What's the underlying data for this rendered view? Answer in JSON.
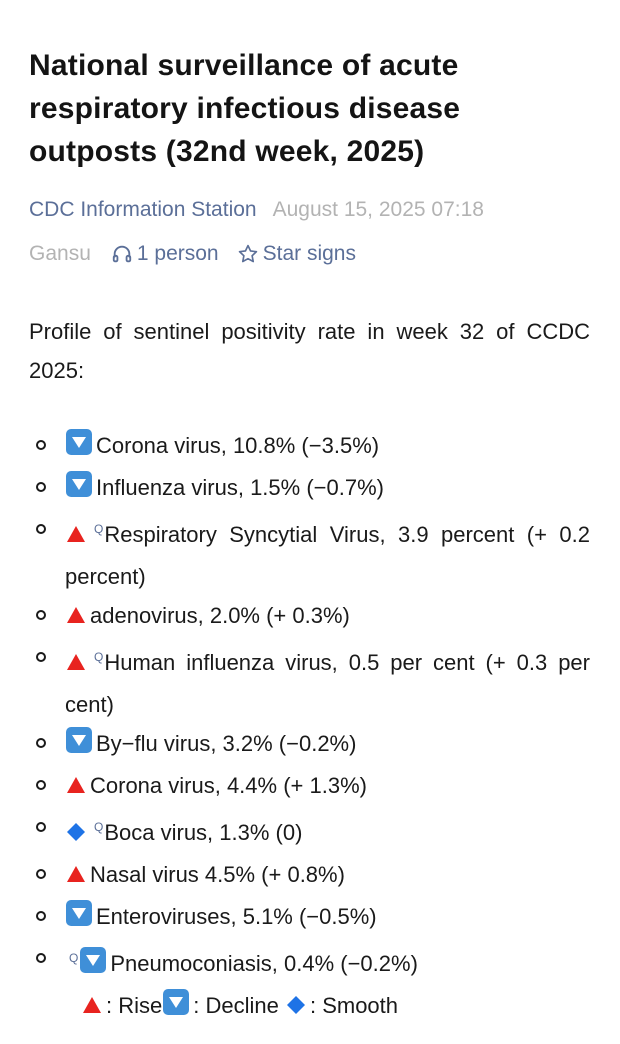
{
  "article": {
    "title": "National surveillance of acute respiratory infectious disease outposts (32nd week, 2025)",
    "source": "CDC Information Station",
    "publish_time": "August 15, 2025 07:18",
    "region": "Gansu",
    "listeners": "1 person",
    "star_label": "Star signs",
    "intro": "Profile of sentinel positivity rate in week 32 of CCDC 2025:"
  },
  "viruses": [
    {
      "trend": "decline",
      "text": "Corona virus, 10.8% (−3.5%)"
    },
    {
      "trend": "decline",
      "text": "Influenza virus, 1.5% (−0.7%)"
    },
    {
      "trend": "rise",
      "search": true,
      "text": "Respiratory Syncytial Virus, 3.9 percent (+ 0.2 percent)"
    },
    {
      "trend": "rise",
      "text": "adenovirus, 2.0% (+ 0.3%)"
    },
    {
      "trend": "rise",
      "search": true,
      "text": "Human influenza virus, 0.5 per cent (+ 0.3 per cent)"
    },
    {
      "trend": "decline",
      "text": "By−flu virus, 3.2% (−0.2%)"
    },
    {
      "trend": "rise",
      "text": "Corona virus, 4.4% (+ 1.3%)"
    },
    {
      "trend": "smooth",
      "search": true,
      "text": "Boca virus, 1.3% (0)"
    },
    {
      "trend": "rise",
      "text": "Nasal virus 4.5% (+ 0.8%)"
    },
    {
      "trend": "decline",
      "text": "Enteroviruses, 5.1% (−0.5%)"
    },
    {
      "trend": "decline",
      "search_before": true,
      "text": "Pneumoconiasis, 0.4% (−0.2%)"
    }
  ],
  "legend": {
    "rise_label": ": Rise",
    "decline_label": ": Decline",
    "smooth_label": ": Smooth"
  },
  "colors": {
    "link": "#5b6f98",
    "muted": "#b3b3b3",
    "rise": "#e8231f",
    "decline": "#3f8fd8",
    "smooth": "#1e73e6"
  },
  "icons": {
    "rise": "red-triangle-up-icon",
    "decline": "blue-down-box-icon",
    "smooth": "blue-diamond-icon",
    "search": "search-icon",
    "listen": "headphones-icon",
    "star": "star-icon"
  }
}
